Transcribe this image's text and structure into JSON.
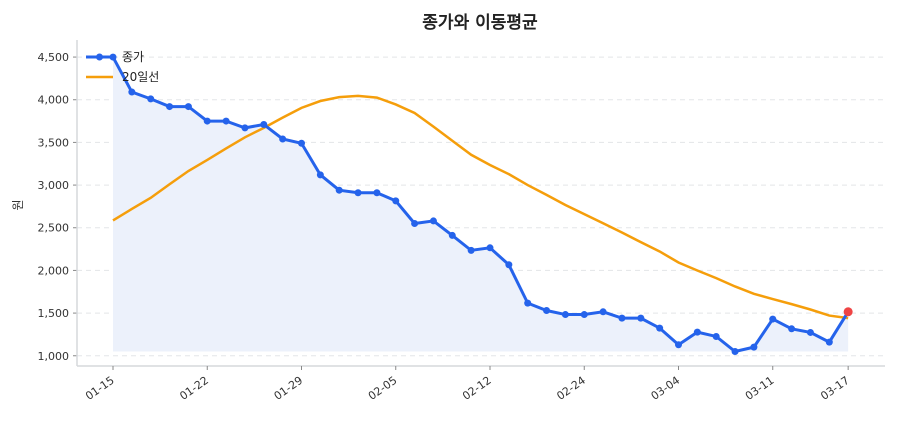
{
  "chart_data": {
    "type": "line",
    "title": "종가와 이동평균",
    "xlabel": "",
    "ylabel": "원",
    "ylim": [
      880,
      4700
    ],
    "yticks": [
      1000,
      1500,
      2000,
      2500,
      3000,
      3500,
      4000,
      4500
    ],
    "ytick_labels": [
      "1,000",
      "1,500",
      "2,000",
      "2,500",
      "3,000",
      "3,500",
      "4,000",
      "4,500"
    ],
    "xticks": [
      {
        "index": 0,
        "label": "01-15"
      },
      {
        "index": 5,
        "label": "01-22"
      },
      {
        "index": 10,
        "label": "01-29"
      },
      {
        "index": 15,
        "label": "02-05"
      },
      {
        "index": 20,
        "label": "02-12"
      },
      {
        "index": 25,
        "label": "02-24"
      },
      {
        "index": 30,
        "label": "03-04"
      },
      {
        "index": 35,
        "label": "03-11"
      },
      {
        "index": 39,
        "label": "03-17"
      }
    ],
    "grid": "horizontal dashed",
    "legend": "top-left",
    "series": [
      {
        "name": "종가",
        "color": "#2563eb",
        "markers": true,
        "fill": "#ecf1fb",
        "values": [
          4500,
          4090,
          4010,
          3920,
          3920,
          3750,
          3750,
          3670,
          3710,
          3540,
          3490,
          3120,
          2940,
          2910,
          2910,
          2815,
          2550,
          2580,
          2410,
          2235,
          2265,
          2066,
          1617,
          1530,
          1483,
          1483,
          1515,
          1441,
          1441,
          1324,
          1129,
          1277,
          1226,
          1050,
          1101,
          1430,
          1316,
          1273,
          1160,
          1515
        ]
      },
      {
        "name": "20일선",
        "color": "#f59e0b",
        "markers": false,
        "values": [
          2585,
          2720,
          2850,
          3010,
          3165,
          3295,
          3430,
          3560,
          3670,
          3790,
          3905,
          3985,
          4030,
          4045,
          4025,
          3945,
          3845,
          3685,
          3520,
          3355,
          3235,
          3128,
          3000,
          2885,
          2767,
          2659,
          2553,
          2444,
          2331,
          2222,
          2093,
          1999,
          1910,
          1812,
          1726,
          1664,
          1605,
          1542,
          1471,
          1441
        ]
      }
    ],
    "highlight_last_point_color": "#ef4444"
  }
}
